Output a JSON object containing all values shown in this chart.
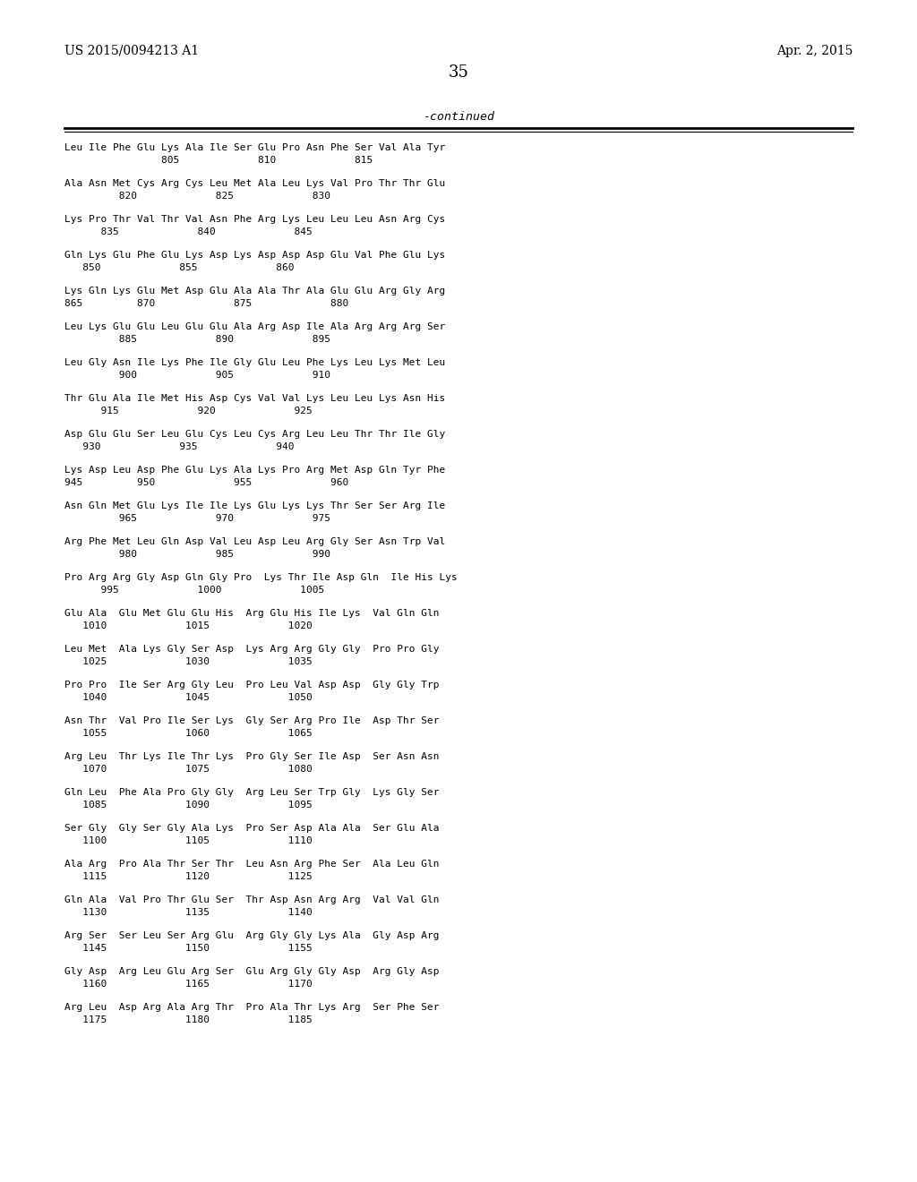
{
  "header_left": "US 2015/0094213 A1",
  "header_right": "Apr. 2, 2015",
  "page_number": "35",
  "continued_label": "-continued",
  "background_color": "#ffffff",
  "text_color": "#000000",
  "sequence_blocks": [
    [
      "Leu Ile Phe Glu Lys Ala Ile Ser Glu Pro Asn Phe Ser Val Ala Tyr",
      "                805             810             815"
    ],
    [
      "Ala Asn Met Cys Arg Cys Leu Met Ala Leu Lys Val Pro Thr Thr Glu",
      "         820             825             830"
    ],
    [
      "Lys Pro Thr Val Thr Val Asn Phe Arg Lys Leu Leu Leu Asn Arg Cys",
      "      835             840             845"
    ],
    [
      "Gln Lys Glu Phe Glu Lys Asp Lys Asp Asp Asp Glu Val Phe Glu Lys",
      "   850             855             860"
    ],
    [
      "Lys Gln Lys Glu Met Asp Glu Ala Ala Thr Ala Glu Glu Arg Gly Arg",
      "865         870             875             880"
    ],
    [
      "Leu Lys Glu Glu Leu Glu Glu Ala Arg Asp Ile Ala Arg Arg Arg Ser",
      "         885             890             895"
    ],
    [
      "Leu Gly Asn Ile Lys Phe Ile Gly Glu Leu Phe Lys Leu Lys Met Leu",
      "         900             905             910"
    ],
    [
      "Thr Glu Ala Ile Met His Asp Cys Val Val Lys Leu Leu Lys Asn His",
      "      915             920             925"
    ],
    [
      "Asp Glu Glu Ser Leu Glu Cys Leu Cys Arg Leu Leu Thr Thr Ile Gly",
      "   930             935             940"
    ],
    [
      "Lys Asp Leu Asp Phe Glu Lys Ala Lys Pro Arg Met Asp Gln Tyr Phe",
      "945         950             955             960"
    ],
    [
      "Asn Gln Met Glu Lys Ile Ile Lys Glu Lys Lys Thr Ser Ser Arg Ile",
      "         965             970             975"
    ],
    [
      "Arg Phe Met Leu Gln Asp Val Leu Asp Leu Arg Gly Ser Asn Trp Val",
      "         980             985             990"
    ],
    [
      "Pro Arg Arg Gly Asp Gln Gly Pro  Lys Thr Ile Asp Gln  Ile His Lys",
      "      995             1000             1005"
    ],
    [
      "Glu Ala  Glu Met Glu Glu His  Arg Glu His Ile Lys  Val Gln Gln",
      "   1010             1015             1020"
    ],
    [
      "Leu Met  Ala Lys Gly Ser Asp  Lys Arg Arg Gly Gly  Pro Pro Gly",
      "   1025             1030             1035"
    ],
    [
      "Pro Pro  Ile Ser Arg Gly Leu  Pro Leu Val Asp Asp  Gly Gly Trp",
      "   1040             1045             1050"
    ],
    [
      "Asn Thr  Val Pro Ile Ser Lys  Gly Ser Arg Pro Ile  Asp Thr Ser",
      "   1055             1060             1065"
    ],
    [
      "Arg Leu  Thr Lys Ile Thr Lys  Pro Gly Ser Ile Asp  Ser Asn Asn",
      "   1070             1075             1080"
    ],
    [
      "Gln Leu  Phe Ala Pro Gly Gly  Arg Leu Ser Trp Gly  Lys Gly Ser",
      "   1085             1090             1095"
    ],
    [
      "Ser Gly  Gly Ser Gly Ala Lys  Pro Ser Asp Ala Ala  Ser Glu Ala",
      "   1100             1105             1110"
    ],
    [
      "Ala Arg  Pro Ala Thr Ser Thr  Leu Asn Arg Phe Ser  Ala Leu Gln",
      "   1115             1120             1125"
    ],
    [
      "Gln Ala  Val Pro Thr Glu Ser  Thr Asp Asn Arg Arg  Val Val Gln",
      "   1130             1135             1140"
    ],
    [
      "Arg Ser  Ser Leu Ser Arg Glu  Arg Gly Gly Lys Ala  Gly Asp Arg",
      "   1145             1150             1155"
    ],
    [
      "Gly Asp  Arg Leu Glu Arg Ser  Glu Arg Gly Gly Asp  Arg Gly Asp",
      "   1160             1165             1170"
    ],
    [
      "Arg Leu  Asp Arg Ala Arg Thr  Pro Ala Thr Lys Arg  Ser Phe Ser",
      "   1175             1180             1185"
    ]
  ]
}
